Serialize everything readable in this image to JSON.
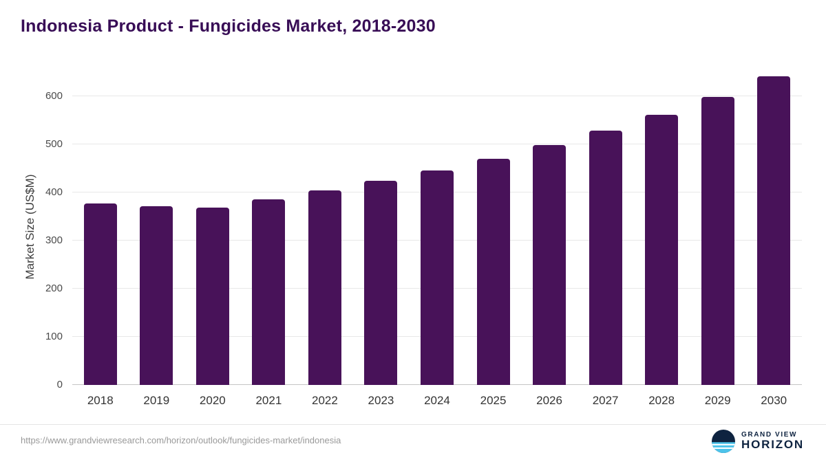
{
  "page": {
    "title": "Indonesia Product - Fungicides Market, 2018-2030",
    "source_url": "https://www.grandviewresearch.com/horizon/outlook/fungicides-market/indonesia"
  },
  "logo": {
    "line1": "GRAND VIEW",
    "line2": "HORIZON"
  },
  "colors": {
    "bar": "#481259",
    "title": "#380d56",
    "grid": "#e8e8e8",
    "baseline": "#c4c4c4",
    "logo_navy": "#0e2340",
    "logo_blue": "#4cc3ea"
  },
  "chart_data": {
    "type": "bar",
    "title": "Indonesia Product - Fungicides Market, 2018-2030",
    "categories": [
      "2018",
      "2019",
      "2020",
      "2021",
      "2022",
      "2023",
      "2024",
      "2025",
      "2026",
      "2027",
      "2028",
      "2029",
      "2030"
    ],
    "values": [
      377,
      371,
      369,
      386,
      404,
      424,
      446,
      470,
      498,
      528,
      562,
      599,
      641
    ],
    "xlabel": "",
    "ylabel": "Market Size (US$M)",
    "ylim": [
      0,
      657
    ],
    "yticks": [
      0,
      100,
      200,
      300,
      400,
      500,
      600
    ],
    "grid": true,
    "legend": "none",
    "bar_color": "#481259"
  }
}
